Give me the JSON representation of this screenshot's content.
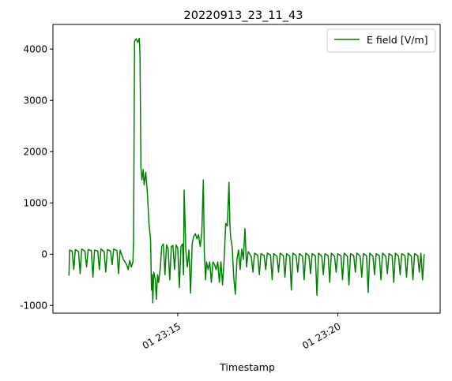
{
  "chart_data": {
    "type": "line",
    "title": "20220913_23_11_43",
    "xlabel": "Timestamp",
    "ylabel": "",
    "x_unit": "minutes after 23:11 on day 01",
    "xlim": [
      23.1,
      35.2
    ],
    "ylim": [
      -1150,
      4480
    ],
    "x_ticks": [
      {
        "value": 27,
        "label": "01 23:15"
      },
      {
        "value": 32,
        "label": "01 23:20"
      }
    ],
    "y_ticks": [
      -1000,
      0,
      1000,
      2000,
      3000,
      4000
    ],
    "grid": false,
    "legend": {
      "placement": "top-right"
    },
    "series": [
      {
        "name": "E field [V/m]",
        "color": "#008000",
        "points": [
          [
            23.6,
            -420
          ],
          [
            23.62,
            80
          ],
          [
            23.7,
            60
          ],
          [
            23.75,
            -300
          ],
          [
            23.8,
            90
          ],
          [
            23.9,
            50
          ],
          [
            23.95,
            -380
          ],
          [
            24.0,
            100
          ],
          [
            24.1,
            60
          ],
          [
            24.15,
            -250
          ],
          [
            24.2,
            90
          ],
          [
            24.3,
            70
          ],
          [
            24.35,
            -450
          ],
          [
            24.4,
            80
          ],
          [
            24.5,
            60
          ],
          [
            24.55,
            -300
          ],
          [
            24.6,
            100
          ],
          [
            24.7,
            50
          ],
          [
            24.75,
            -350
          ],
          [
            24.8,
            90
          ],
          [
            24.9,
            60
          ],
          [
            24.95,
            -200
          ],
          [
            25.0,
            100
          ],
          [
            25.1,
            70
          ],
          [
            25.15,
            -380
          ],
          [
            25.2,
            80
          ],
          [
            25.3,
            -100
          ],
          [
            25.4,
            -200
          ],
          [
            25.45,
            -300
          ],
          [
            25.5,
            -120
          ],
          [
            25.55,
            -250
          ],
          [
            25.6,
            -150
          ],
          [
            25.62,
            300
          ],
          [
            25.65,
            4150
          ],
          [
            25.7,
            4200
          ],
          [
            25.75,
            4130
          ],
          [
            25.8,
            4210
          ],
          [
            25.82,
            3900
          ],
          [
            25.85,
            1700
          ],
          [
            25.88,
            1450
          ],
          [
            25.92,
            1650
          ],
          [
            25.95,
            1350
          ],
          [
            26.0,
            1600
          ],
          [
            26.05,
            1200
          ],
          [
            26.1,
            600
          ],
          [
            26.15,
            300
          ],
          [
            26.18,
            -700
          ],
          [
            26.2,
            -400
          ],
          [
            26.22,
            -950
          ],
          [
            26.25,
            -350
          ],
          [
            26.3,
            -500
          ],
          [
            26.33,
            -880
          ],
          [
            26.37,
            -400
          ],
          [
            26.4,
            -550
          ],
          [
            26.45,
            -300
          ],
          [
            26.5,
            150
          ],
          [
            26.55,
            200
          ],
          [
            26.6,
            -400
          ],
          [
            26.65,
            180
          ],
          [
            26.7,
            100
          ],
          [
            26.75,
            -500
          ],
          [
            26.8,
            150
          ],
          [
            26.85,
            170
          ],
          [
            26.9,
            -300
          ],
          [
            26.95,
            180
          ],
          [
            27.0,
            120
          ],
          [
            27.05,
            -650
          ],
          [
            27.1,
            150
          ],
          [
            27.15,
            200
          ],
          [
            27.18,
            -400
          ],
          [
            27.2,
            1250
          ],
          [
            27.25,
            100
          ],
          [
            27.3,
            -250
          ],
          [
            27.35,
            80
          ],
          [
            27.4,
            -760
          ],
          [
            27.45,
            200
          ],
          [
            27.5,
            350
          ],
          [
            27.55,
            400
          ],
          [
            27.6,
            300
          ],
          [
            27.65,
            380
          ],
          [
            27.7,
            150
          ],
          [
            27.75,
            400
          ],
          [
            27.8,
            1450
          ],
          [
            27.83,
            50
          ],
          [
            27.87,
            -500
          ],
          [
            27.9,
            -150
          ],
          [
            27.95,
            -300
          ],
          [
            28.0,
            -150
          ],
          [
            28.05,
            -550
          ],
          [
            28.1,
            -150
          ],
          [
            28.15,
            -200
          ],
          [
            28.2,
            -300
          ],
          [
            28.25,
            -150
          ],
          [
            28.3,
            -550
          ],
          [
            28.35,
            -150
          ],
          [
            28.4,
            -600
          ],
          [
            28.45,
            -100
          ],
          [
            28.5,
            600
          ],
          [
            28.55,
            550
          ],
          [
            28.6,
            1400
          ],
          [
            28.63,
            600
          ],
          [
            28.65,
            350
          ],
          [
            28.7,
            150
          ],
          [
            28.75,
            -450
          ],
          [
            28.8,
            -780
          ],
          [
            28.85,
            -100
          ],
          [
            28.9,
            80
          ],
          [
            28.95,
            -300
          ],
          [
            29.0,
            100
          ],
          [
            29.05,
            -100
          ],
          [
            29.1,
            500
          ],
          [
            29.15,
            -250
          ],
          [
            29.2,
            50
          ],
          [
            29.3,
            -50
          ],
          [
            29.35,
            -350
          ],
          [
            29.4,
            20
          ],
          [
            29.5,
            -20
          ],
          [
            29.55,
            -400
          ],
          [
            29.6,
            10
          ],
          [
            29.7,
            -30
          ],
          [
            29.75,
            -300
          ],
          [
            29.8,
            20
          ],
          [
            29.9,
            -20
          ],
          [
            29.95,
            -500
          ],
          [
            30.0,
            10
          ],
          [
            30.1,
            -40
          ],
          [
            30.15,
            -350
          ],
          [
            30.2,
            20
          ],
          [
            30.3,
            -30
          ],
          [
            30.35,
            -450
          ],
          [
            30.4,
            10
          ],
          [
            30.5,
            -40
          ],
          [
            30.55,
            -700
          ],
          [
            30.6,
            20
          ],
          [
            30.7,
            -30
          ],
          [
            30.75,
            -350
          ],
          [
            30.8,
            10
          ],
          [
            30.9,
            -40
          ],
          [
            30.95,
            -500
          ],
          [
            31.0,
            20
          ],
          [
            31.1,
            -30
          ],
          [
            31.15,
            -380
          ],
          [
            31.2,
            10
          ],
          [
            31.3,
            -30
          ],
          [
            31.35,
            -800
          ],
          [
            31.4,
            20
          ],
          [
            31.5,
            -40
          ],
          [
            31.55,
            -400
          ],
          [
            31.6,
            10
          ],
          [
            31.7,
            -30
          ],
          [
            31.75,
            -550
          ],
          [
            31.8,
            20
          ],
          [
            31.9,
            -40
          ],
          [
            31.95,
            -350
          ],
          [
            32.0,
            10
          ],
          [
            32.1,
            -30
          ],
          [
            32.15,
            -500
          ],
          [
            32.2,
            20
          ],
          [
            32.3,
            -40
          ],
          [
            32.35,
            -600
          ],
          [
            32.4,
            10
          ],
          [
            32.5,
            -30
          ],
          [
            32.55,
            -350
          ],
          [
            32.6,
            20
          ],
          [
            32.7,
            -40
          ],
          [
            32.75,
            -450
          ],
          [
            32.8,
            10
          ],
          [
            32.9,
            -30
          ],
          [
            32.95,
            -750
          ],
          [
            33.0,
            20
          ],
          [
            33.1,
            -40
          ],
          [
            33.15,
            -400
          ],
          [
            33.2,
            10
          ],
          [
            33.3,
            -30
          ],
          [
            33.35,
            -500
          ],
          [
            33.4,
            20
          ],
          [
            33.5,
            -40
          ],
          [
            33.55,
            -380
          ],
          [
            33.6,
            10
          ],
          [
            33.7,
            -30
          ],
          [
            33.75,
            -550
          ],
          [
            33.8,
            20
          ],
          [
            33.9,
            -40
          ],
          [
            33.95,
            -400
          ],
          [
            34.0,
            10
          ],
          [
            34.1,
            -30
          ],
          [
            34.15,
            -450
          ],
          [
            34.2,
            20
          ],
          [
            34.3,
            -40
          ],
          [
            34.35,
            -500
          ],
          [
            34.4,
            10
          ],
          [
            34.5,
            -30
          ],
          [
            34.55,
            -350
          ],
          [
            34.6,
            20
          ],
          [
            34.65,
            -500
          ],
          [
            34.7,
            0
          ]
        ]
      }
    ]
  }
}
